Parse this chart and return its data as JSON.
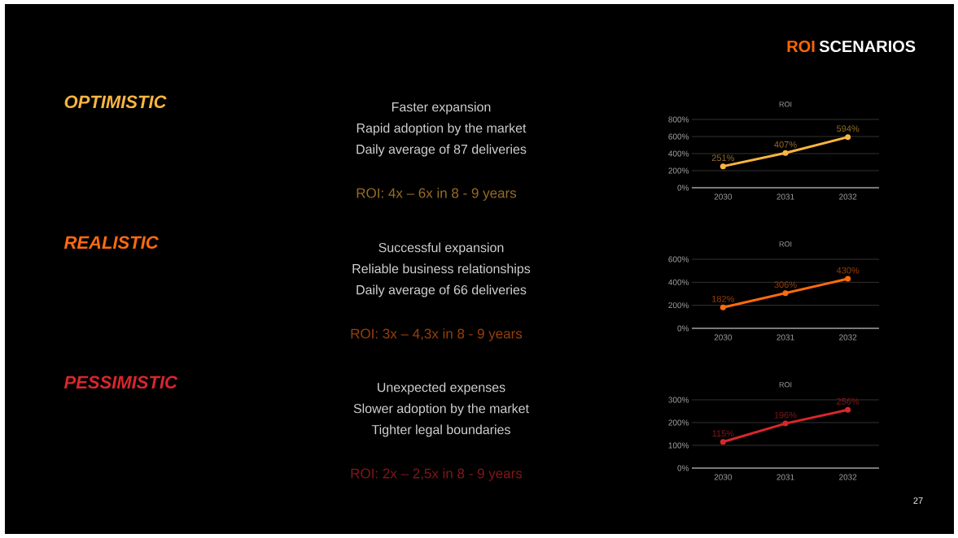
{
  "chart_data": [
    {
      "type": "line",
      "title": "ROI",
      "categories": [
        "2030",
        "2031",
        "2032"
      ],
      "series": [
        {
          "color": "#fbb540",
          "values": [
            251,
            407,
            594
          ],
          "value_labels": [
            "251%",
            "407%",
            "594%"
          ]
        }
      ],
      "ylim": [
        0,
        800
      ],
      "yticks": [
        {
          "value": 0,
          "label": "0%"
        },
        {
          "value": 200,
          "label": "200%"
        },
        {
          "value": 400,
          "label": "400%"
        },
        {
          "value": 600,
          "label": "600%"
        },
        {
          "value": 800,
          "label": "800%"
        }
      ],
      "grid": "y",
      "marker": "circle",
      "annotations": [
        "OPTIMISTIC",
        "Faster expansion",
        "Rapid adoption by the market",
        "Daily average of 87 deliveries",
        "ROI: 4x – 6x in 8 - 9 years",
        "ROI",
        "SCENARIOS",
        "27"
      ]
    },
    {
      "type": "line",
      "title": "ROI",
      "categories": [
        "2030",
        "2031",
        "2032"
      ],
      "series": [
        {
          "color": "#ff6a0e",
          "values": [
            182,
            306,
            430
          ],
          "value_labels": [
            "182%",
            "306%",
            "430%"
          ]
        }
      ],
      "ylim": [
        0,
        600
      ],
      "yticks": [
        {
          "value": 0,
          "label": "0%"
        },
        {
          "value": 200,
          "label": "200%"
        },
        {
          "value": 400,
          "label": "400%"
        },
        {
          "value": 600,
          "label": "600%"
        }
      ],
      "grid": "y",
      "marker": "circle",
      "annotations": [
        "REALISTIC",
        "Successful expansion",
        "Reliable business relationships",
        "Daily average of 66 deliveries",
        "ROI: 3x – 4,3x in 8 - 9 years"
      ]
    },
    {
      "type": "line",
      "title": "ROI",
      "categories": [
        "2030",
        "2031",
        "2032"
      ],
      "series": [
        {
          "color": "#d8262c",
          "values": [
            115,
            196,
            256
          ],
          "value_labels": [
            "115%",
            "196%",
            "256%"
          ]
        }
      ],
      "ylim": [
        0,
        300
      ],
      "yticks": [
        {
          "value": 0,
          "label": "0%"
        },
        {
          "value": 100,
          "label": "100%"
        },
        {
          "value": 200,
          "label": "200%"
        },
        {
          "value": 300,
          "label": "300%"
        }
      ],
      "grid": "y",
      "marker": "circle",
      "annotations": [
        "PESSIMISTIC",
        "Unexpected expenses",
        "Slower adoption by the market",
        "Tighter legal boundaries",
        "ROI: 2x – 2,5x in 8 - 9 years"
      ]
    }
  ]
}
